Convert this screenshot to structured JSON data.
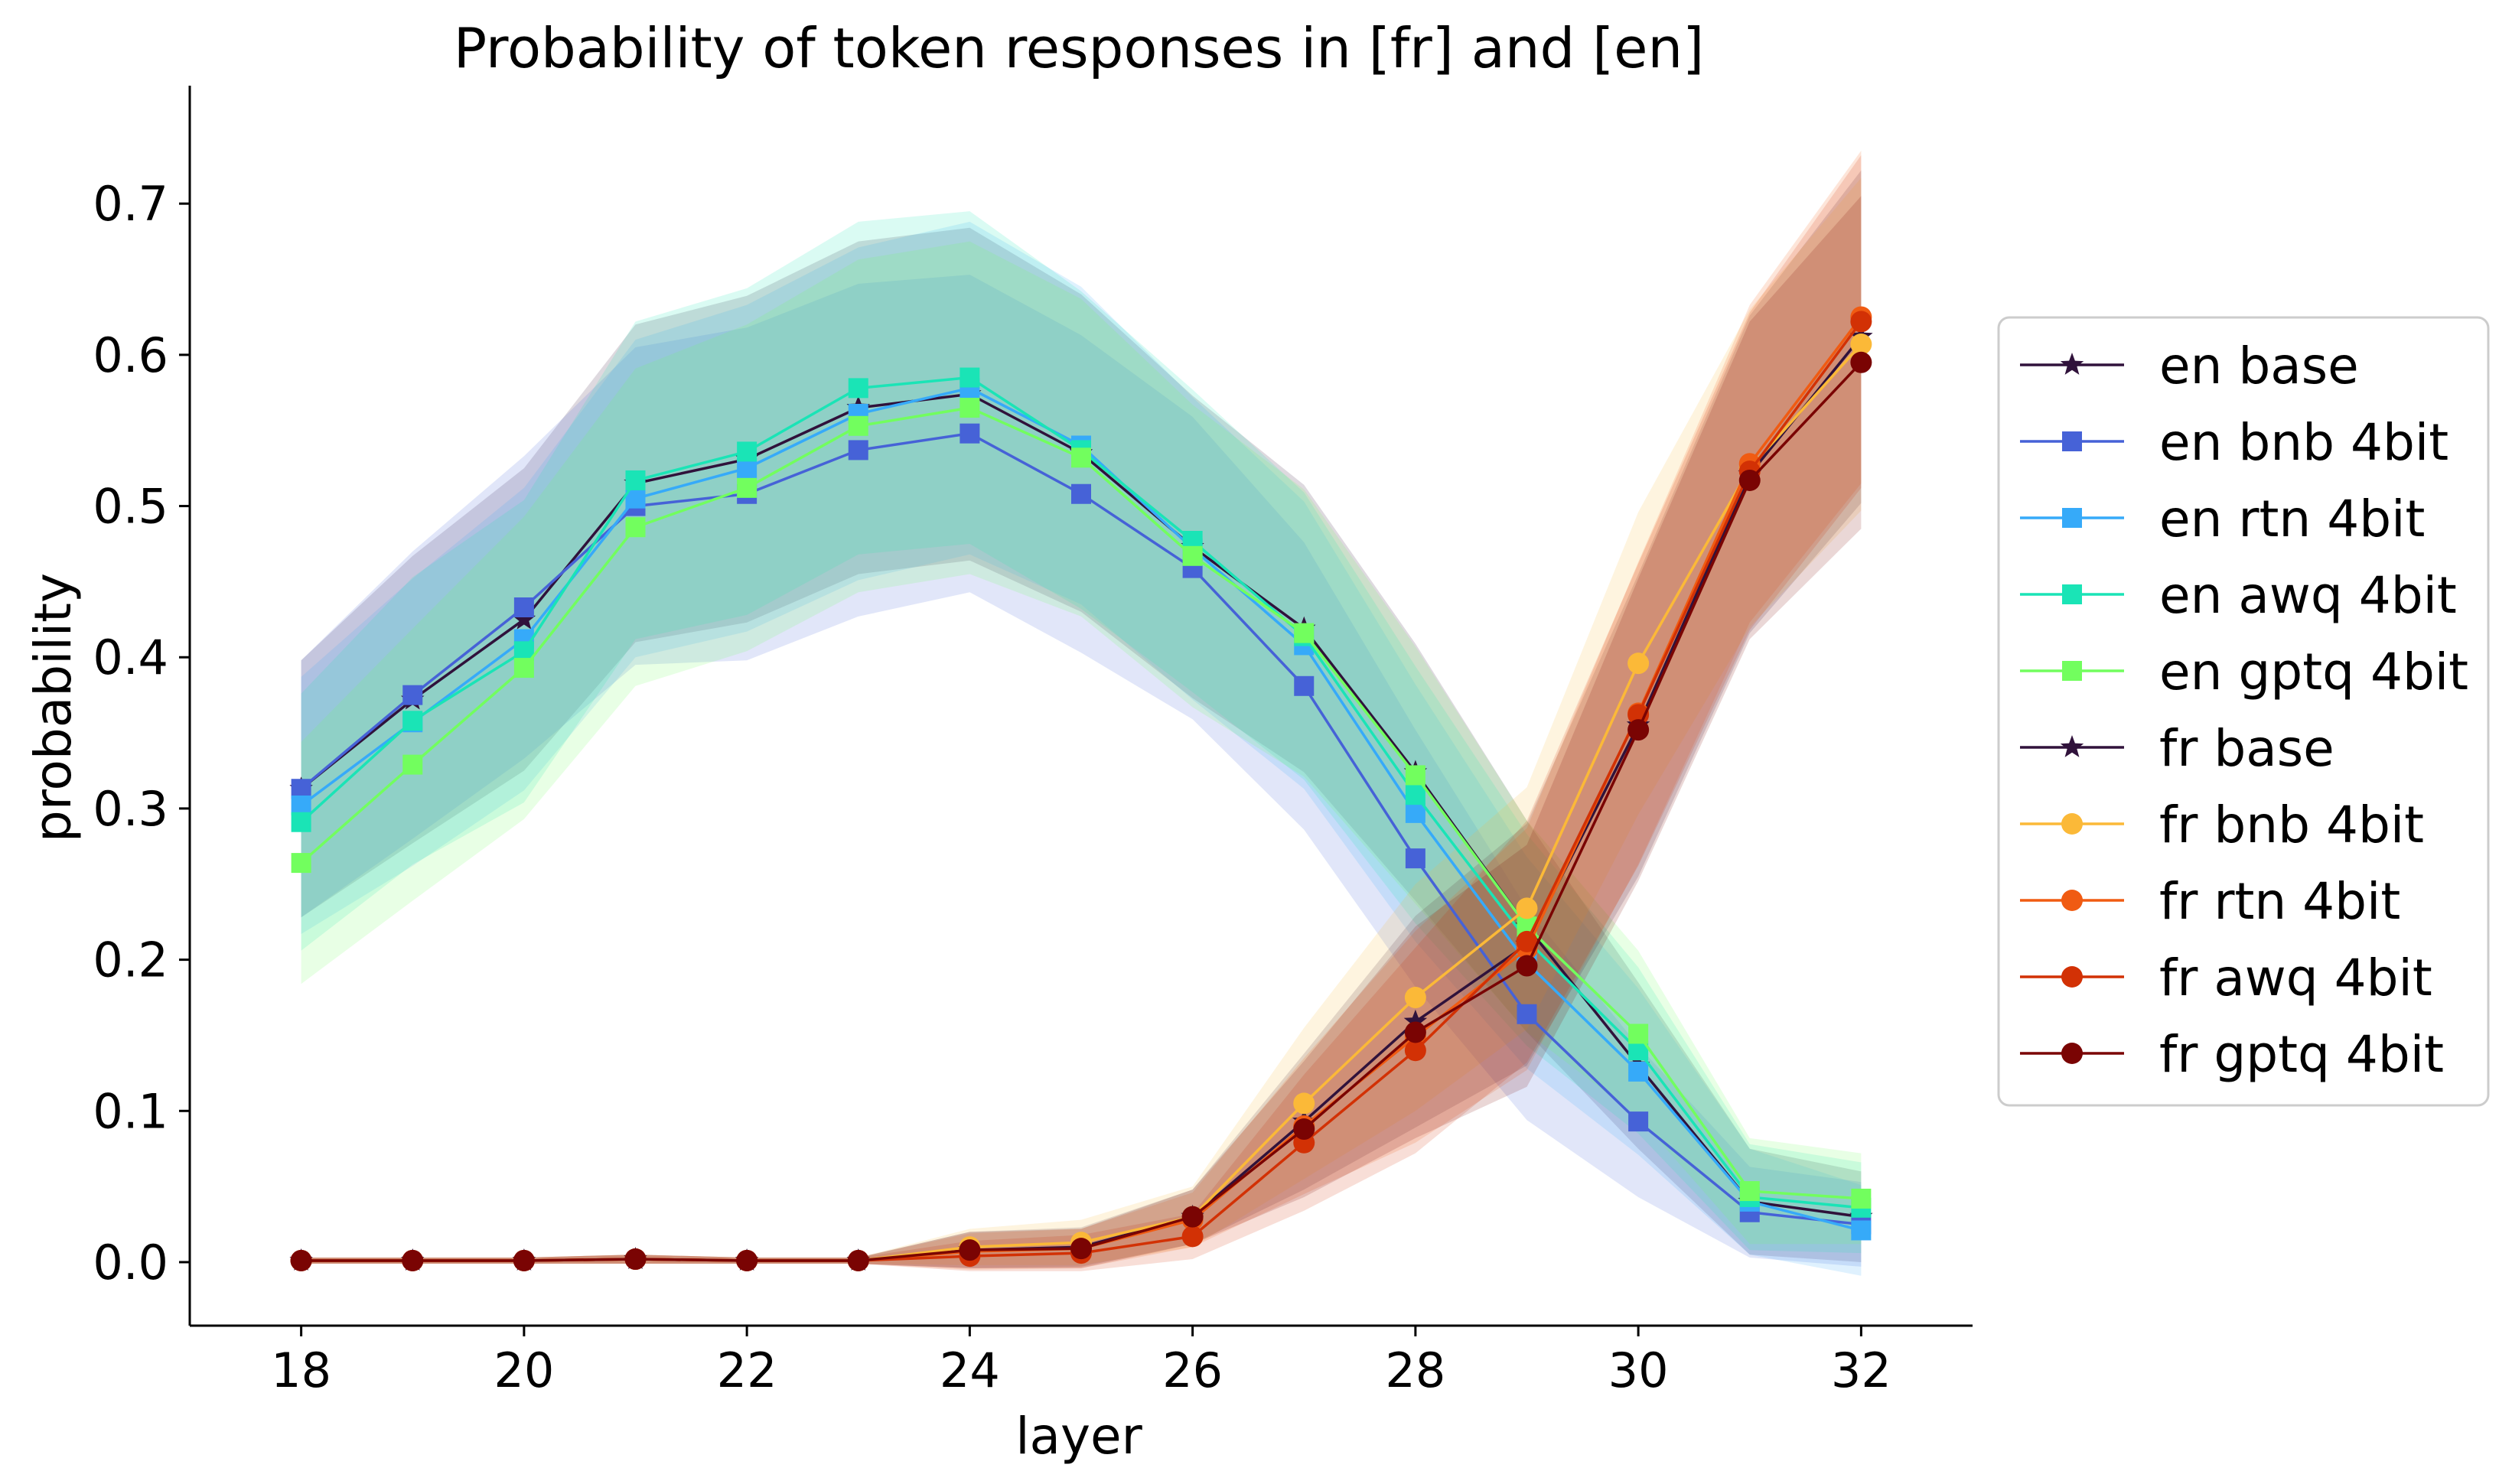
{
  "chart_data": {
    "type": "line",
    "title": "Probability of token responses in [fr] and [en]",
    "xlabel": "layer",
    "ylabel": "probability",
    "xlim": [
      17,
      33
    ],
    "ylim": [
      -0.042,
      0.778
    ],
    "xticks": [
      18,
      20,
      22,
      24,
      26,
      28,
      30,
      32
    ],
    "yticks": [
      0.0,
      0.1,
      0.2,
      0.3,
      0.4,
      0.5,
      0.6,
      0.7
    ],
    "ytick_labels": [
      "0.0",
      "0.1",
      "0.2",
      "0.3",
      "0.4",
      "0.5",
      "0.6",
      "0.7"
    ],
    "legend_position": "center right, outside plot",
    "grid": false,
    "x": [
      18,
      19,
      20,
      21,
      22,
      23,
      24,
      25,
      26,
      27,
      28,
      29,
      30,
      31,
      32
    ],
    "series": [
      {
        "name": "en base",
        "marker": "star",
        "color": "#30123b",
        "values": [
          0.313,
          0.372,
          0.425,
          0.515,
          0.531,
          0.565,
          0.574,
          0.535,
          0.473,
          0.419,
          0.324,
          0.222,
          0.13,
          0.04,
          0.03
        ],
        "band": [
          0.085,
          0.095,
          0.1,
          0.105,
          0.108,
          0.11,
          0.11,
          0.105,
          0.1,
          0.095,
          0.085,
          0.07,
          0.055,
          0.035,
          0.03
        ]
      },
      {
        "name": "en bnb 4bit",
        "marker": "square",
        "color": "#4662d7",
        "values": [
          0.313,
          0.375,
          0.433,
          0.5,
          0.508,
          0.537,
          0.548,
          0.508,
          0.459,
          0.381,
          0.267,
          0.164,
          0.093,
          0.033,
          0.025
        ],
        "band": [
          0.085,
          0.095,
          0.1,
          0.105,
          0.11,
          0.11,
          0.105,
          0.105,
          0.1,
          0.095,
          0.085,
          0.07,
          0.05,
          0.03,
          0.028
        ]
      },
      {
        "name": "en rtn 4bit",
        "marker": "square",
        "color": "#36aaf9",
        "values": [
          0.302,
          0.357,
          0.412,
          0.505,
          0.525,
          0.561,
          0.578,
          0.54,
          0.472,
          0.408,
          0.297,
          0.198,
          0.126,
          0.04,
          0.021
        ],
        "band": [
          0.085,
          0.095,
          0.1,
          0.105,
          0.108,
          0.11,
          0.11,
          0.105,
          0.1,
          0.095,
          0.085,
          0.07,
          0.055,
          0.035,
          0.03
        ]
      },
      {
        "name": "en awq 4bit",
        "marker": "square",
        "color": "#1ae4b6",
        "values": [
          0.291,
          0.358,
          0.404,
          0.517,
          0.536,
          0.578,
          0.585,
          0.537,
          0.477,
          0.414,
          0.309,
          0.213,
          0.14,
          0.043,
          0.036
        ],
        "band": [
          0.085,
          0.095,
          0.1,
          0.105,
          0.108,
          0.11,
          0.11,
          0.105,
          0.1,
          0.095,
          0.085,
          0.07,
          0.055,
          0.035,
          0.03
        ]
      },
      {
        "name": "en gptq 4bit",
        "marker": "square",
        "color": "#72fe5e",
        "values": [
          0.264,
          0.329,
          0.393,
          0.486,
          0.512,
          0.553,
          0.565,
          0.532,
          0.467,
          0.416,
          0.322,
          0.222,
          0.151,
          0.047,
          0.042
        ],
        "band": [
          0.08,
          0.09,
          0.1,
          0.105,
          0.108,
          0.11,
          0.11,
          0.105,
          0.1,
          0.095,
          0.085,
          0.07,
          0.055,
          0.035,
          0.03
        ]
      },
      {
        "name": "fr base",
        "marker": "star",
        "color": "#30123b",
        "values": [
          0.001,
          0.001,
          0.001,
          0.002,
          0.001,
          0.001,
          0.008,
          0.01,
          0.03,
          0.093,
          0.159,
          0.21,
          0.355,
          0.521,
          0.612
        ],
        "band": [
          0.002,
          0.002,
          0.002,
          0.003,
          0.002,
          0.002,
          0.012,
          0.013,
          0.018,
          0.045,
          0.07,
          0.08,
          0.1,
          0.105,
          0.11
        ]
      },
      {
        "name": "fr bnb 4bit",
        "marker": "circle",
        "color": "#fbb938",
        "values": [
          0.001,
          0.001,
          0.001,
          0.002,
          0.001,
          0.001,
          0.01,
          0.013,
          0.03,
          0.105,
          0.175,
          0.234,
          0.396,
          0.525,
          0.607
        ],
        "band": [
          0.002,
          0.002,
          0.002,
          0.003,
          0.002,
          0.002,
          0.012,
          0.015,
          0.02,
          0.05,
          0.075,
          0.08,
          0.1,
          0.105,
          0.11
        ]
      },
      {
        "name": "fr rtn 4bit",
        "marker": "circle",
        "color": "#f05b12",
        "values": [
          0.001,
          0.001,
          0.001,
          0.002,
          0.001,
          0.001,
          0.007,
          0.009,
          0.028,
          0.09,
          0.149,
          0.207,
          0.363,
          0.528,
          0.625
        ],
        "band": [
          0.002,
          0.002,
          0.002,
          0.003,
          0.002,
          0.002,
          0.012,
          0.013,
          0.018,
          0.045,
          0.07,
          0.08,
          0.1,
          0.105,
          0.11
        ]
      },
      {
        "name": "fr awq 4bit",
        "marker": "circle",
        "color": "#d23105",
        "values": [
          0.001,
          0.001,
          0.001,
          0.002,
          0.001,
          0.001,
          0.004,
          0.006,
          0.017,
          0.079,
          0.14,
          0.212,
          0.362,
          0.523,
          0.622
        ],
        "band": [
          0.002,
          0.002,
          0.002,
          0.003,
          0.002,
          0.002,
          0.01,
          0.012,
          0.015,
          0.045,
          0.068,
          0.08,
          0.1,
          0.105,
          0.11
        ]
      },
      {
        "name": "fr gptq 4bit",
        "marker": "circle",
        "color": "#7a0403",
        "values": [
          0.001,
          0.001,
          0.001,
          0.002,
          0.001,
          0.001,
          0.008,
          0.009,
          0.03,
          0.088,
          0.152,
          0.196,
          0.352,
          0.517,
          0.595
        ],
        "band": [
          0.002,
          0.002,
          0.002,
          0.003,
          0.002,
          0.002,
          0.012,
          0.013,
          0.018,
          0.045,
          0.07,
          0.08,
          0.1,
          0.105,
          0.11
        ]
      }
    ]
  }
}
